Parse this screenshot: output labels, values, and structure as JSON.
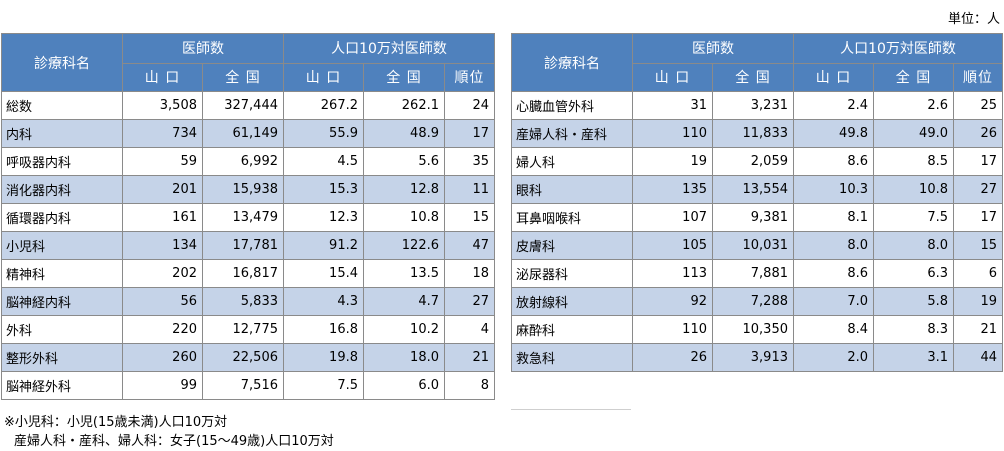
{
  "unit_label": "単位：人",
  "headers": {
    "dept": "診療科名",
    "doctors": "医師数",
    "per100k": "人口10万対医師数",
    "yamaguchi": "山 口",
    "national": "全 国",
    "rank": "順位"
  },
  "left_rows": [
    {
      "name": "総数",
      "yamaguchi": "3,508",
      "national": "327,444",
      "y_rate": "267.2",
      "n_rate": "262.1",
      "rank": "24"
    },
    {
      "name": "内科",
      "yamaguchi": "734",
      "national": "61,149",
      "y_rate": "55.9",
      "n_rate": "48.9",
      "rank": "17"
    },
    {
      "name": "呼吸器内科",
      "yamaguchi": "59",
      "national": "6,992",
      "y_rate": "4.5",
      "n_rate": "5.6",
      "rank": "35"
    },
    {
      "name": "消化器内科",
      "yamaguchi": "201",
      "national": "15,938",
      "y_rate": "15.3",
      "n_rate": "12.8",
      "rank": "11"
    },
    {
      "name": "循環器内科",
      "yamaguchi": "161",
      "national": "13,479",
      "y_rate": "12.3",
      "n_rate": "10.8",
      "rank": "15"
    },
    {
      "name": "小児科",
      "yamaguchi": "134",
      "national": "17,781",
      "y_rate": "91.2",
      "n_rate": "122.6",
      "rank": "47"
    },
    {
      "name": "精神科",
      "yamaguchi": "202",
      "national": "16,817",
      "y_rate": "15.4",
      "n_rate": "13.5",
      "rank": "18"
    },
    {
      "name": "脳神経内科",
      "yamaguchi": "56",
      "national": "5,833",
      "y_rate": "4.3",
      "n_rate": "4.7",
      "rank": "27"
    },
    {
      "name": "外科",
      "yamaguchi": "220",
      "national": "12,775",
      "y_rate": "16.8",
      "n_rate": "10.2",
      "rank": "4"
    },
    {
      "name": "整形外科",
      "yamaguchi": "260",
      "national": "22,506",
      "y_rate": "19.8",
      "n_rate": "18.0",
      "rank": "21"
    },
    {
      "name": "脳神経外科",
      "yamaguchi": "99",
      "national": "7,516",
      "y_rate": "7.5",
      "n_rate": "6.0",
      "rank": "8"
    }
  ],
  "right_rows": [
    {
      "name": "心臓血管外科",
      "yamaguchi": "31",
      "national": "3,231",
      "y_rate": "2.4",
      "n_rate": "2.6",
      "rank": "25"
    },
    {
      "name": "産婦人科・産科",
      "yamaguchi": "110",
      "national": "11,833",
      "y_rate": "49.8",
      "n_rate": "49.0",
      "rank": "26"
    },
    {
      "name": "婦人科",
      "yamaguchi": "19",
      "national": "2,059",
      "y_rate": "8.6",
      "n_rate": "8.5",
      "rank": "17"
    },
    {
      "name": "眼科",
      "yamaguchi": "135",
      "national": "13,554",
      "y_rate": "10.3",
      "n_rate": "10.8",
      "rank": "27"
    },
    {
      "name": "耳鼻咽喉科",
      "yamaguchi": "107",
      "national": "9,381",
      "y_rate": "8.1",
      "n_rate": "7.5",
      "rank": "17"
    },
    {
      "name": "皮膚科",
      "yamaguchi": "105",
      "national": "10,031",
      "y_rate": "8.0",
      "n_rate": "8.0",
      "rank": "15"
    },
    {
      "name": "泌尿器科",
      "yamaguchi": "113",
      "national": "7,881",
      "y_rate": "8.6",
      "n_rate": "6.3",
      "rank": "6"
    },
    {
      "name": "放射線科",
      "yamaguchi": "92",
      "national": "7,288",
      "y_rate": "7.0",
      "n_rate": "5.8",
      "rank": "19"
    },
    {
      "name": "麻酔科",
      "yamaguchi": "110",
      "national": "10,350",
      "y_rate": "8.4",
      "n_rate": "8.3",
      "rank": "21"
    },
    {
      "name": "救急科",
      "yamaguchi": "26",
      "national": "3,913",
      "y_rate": "2.0",
      "n_rate": "3.1",
      "rank": "44"
    }
  ],
  "notes": [
    "※小児科：小児(15歳未満)人口10万対",
    "産婦人科・産科、婦人科：女子(15～49歳)人口10万対"
  ]
}
